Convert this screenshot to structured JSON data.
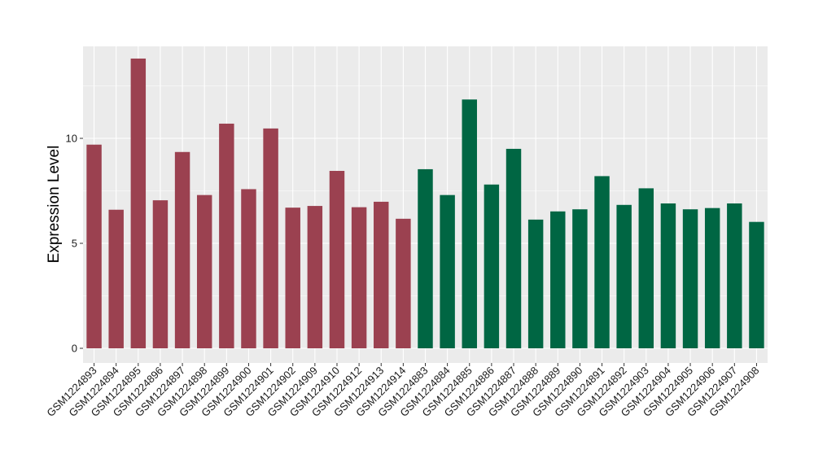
{
  "chart_data": {
    "type": "bar",
    "title": "",
    "xlabel": "",
    "ylabel": "Expression Level",
    "ylim": [
      0,
      14
    ],
    "yticks": [
      0,
      5,
      10
    ],
    "grid": true,
    "legend": "none",
    "colors": {
      "group1": "#9b4150",
      "group2": "#006643",
      "panel": "#ebebeb",
      "grid": "#ffffff"
    },
    "categories": [
      "GSM1224893",
      "GSM1224894",
      "GSM1224895",
      "GSM1224896",
      "GSM1224897",
      "GSM1224898",
      "GSM1224899",
      "GSM1224900",
      "GSM1224901",
      "GSM1224902",
      "GSM1224909",
      "GSM1224910",
      "GSM1224912",
      "GSM1224913",
      "GSM1224914",
      "GSM1224883",
      "GSM1224884",
      "GSM1224885",
      "GSM1224886",
      "GSM1224887",
      "GSM1224888",
      "GSM1224889",
      "GSM1224890",
      "GSM1224891",
      "GSM1224892",
      "GSM1224903",
      "GSM1224904",
      "GSM1224905",
      "GSM1224906",
      "GSM1224907",
      "GSM1224908"
    ],
    "values": [
      9.7,
      6.6,
      13.8,
      7.05,
      9.35,
      7.3,
      10.7,
      7.58,
      10.47,
      6.7,
      6.78,
      8.45,
      6.72,
      6.98,
      6.17,
      8.53,
      7.3,
      11.85,
      7.8,
      9.5,
      6.13,
      6.52,
      6.62,
      8.2,
      6.83,
      7.62,
      6.9,
      6.62,
      6.68,
      6.9,
      6.02
    ],
    "groups": [
      "group1",
      "group1",
      "group1",
      "group1",
      "group1",
      "group1",
      "group1",
      "group1",
      "group1",
      "group1",
      "group1",
      "group1",
      "group1",
      "group1",
      "group1",
      "group2",
      "group2",
      "group2",
      "group2",
      "group2",
      "group2",
      "group2",
      "group2",
      "group2",
      "group2",
      "group2",
      "group2",
      "group2",
      "group2",
      "group2",
      "group2"
    ]
  }
}
